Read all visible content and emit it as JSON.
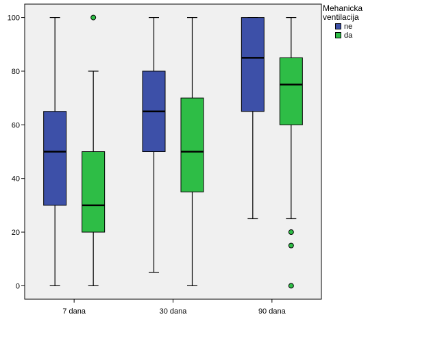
{
  "chart_data": {
    "type": "boxplot",
    "title": "",
    "xlabel": "",
    "ylabel": "",
    "ylim": [
      -5,
      105
    ],
    "yticks": [
      0,
      20,
      40,
      60,
      80,
      100
    ],
    "categories": [
      "7 dana",
      "30 dana",
      "90 dana"
    ],
    "legend": {
      "title_line1": "Mehanicka",
      "title_line2": "ventilacija",
      "position": "top-right"
    },
    "series": [
      {
        "name": "ne",
        "color": "#3d50a8",
        "boxes": [
          {
            "category": "7 dana",
            "min": 0,
            "q1": 30,
            "median": 50,
            "q3": 65,
            "max": 100,
            "outliers": []
          },
          {
            "category": "30 dana",
            "min": 5,
            "q1": 50,
            "median": 65,
            "q3": 80,
            "max": 100,
            "outliers": []
          },
          {
            "category": "90 dana",
            "min": 25,
            "q1": 65,
            "median": 85,
            "q3": 100,
            "max": 100,
            "outliers": []
          }
        ]
      },
      {
        "name": "da",
        "color": "#2ebd46",
        "boxes": [
          {
            "category": "7 dana",
            "min": 0,
            "q1": 20,
            "median": 30,
            "q3": 50,
            "max": 80,
            "outliers": [
              100
            ]
          },
          {
            "category": "30 dana",
            "min": 0,
            "q1": 35,
            "median": 50,
            "q3": 70,
            "max": 100,
            "outliers": []
          },
          {
            "category": "90 dana",
            "min": 25,
            "q1": 60,
            "median": 75,
            "q3": 85,
            "max": 100,
            "outliers": [
              20,
              15,
              0
            ]
          }
        ]
      }
    ],
    "colors": {
      "plot_background": "#f0f0f0",
      "axis": "#000000",
      "outlier_fill": "#2ebd46"
    }
  }
}
